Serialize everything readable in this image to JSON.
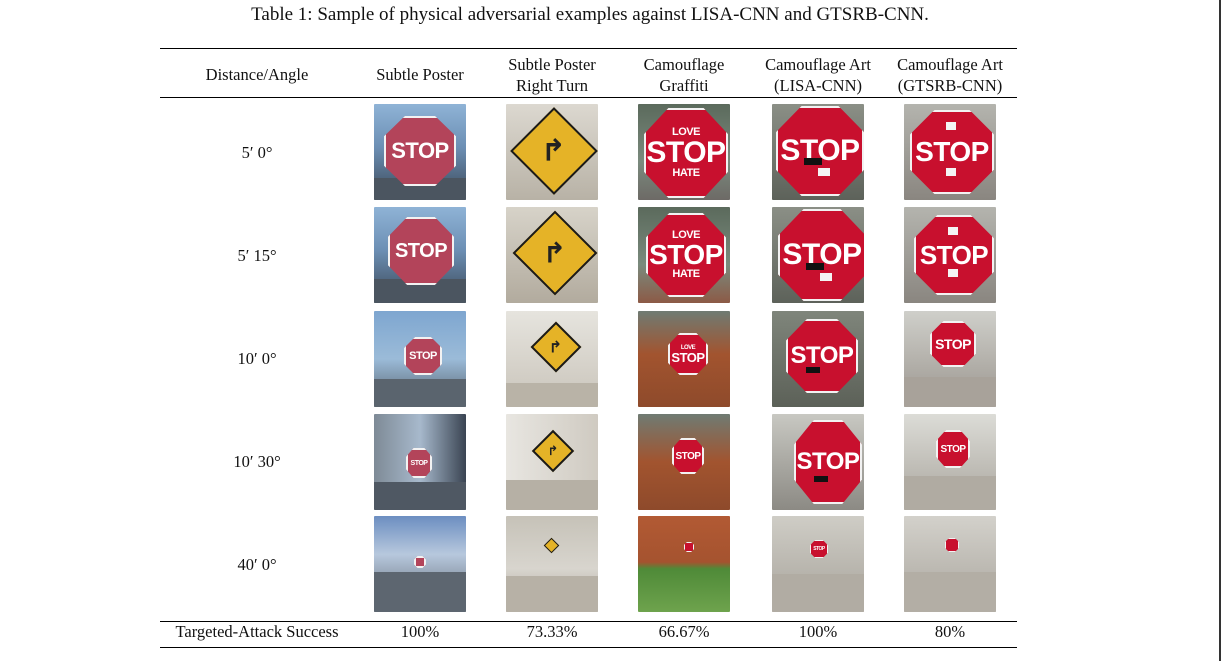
{
  "caption": "Table 1: Sample of physical adversarial examples against LISA-CNN and GTSRB-CNN.",
  "columns": [
    {
      "line1": "Distance/Angle",
      "line2": ""
    },
    {
      "line1": "Subtle Poster",
      "line2": ""
    },
    {
      "line1": "Subtle Poster",
      "line2": "Right Turn"
    },
    {
      "line1": "Camouflage",
      "line2": "Graffiti"
    },
    {
      "line1": "Camouflage Art",
      "line2": "(LISA-CNN)"
    },
    {
      "line1": "Camouflage Art",
      "line2": "(GTSRB-CNN)"
    }
  ],
  "rows": [
    {
      "label": "5′ 0°"
    },
    {
      "label": "5′ 15°"
    },
    {
      "label": "10′ 0°"
    },
    {
      "label": "10′ 30°"
    },
    {
      "label": "40′ 0°"
    }
  ],
  "sign_text": {
    "stop": "STOP",
    "graffiti_top": "LOVE",
    "graffiti_bottom": "HATE",
    "arrow": "↱"
  },
  "footer": {
    "label": "Targeted-Attack Success",
    "values": [
      "100%",
      "73.33%",
      "66.67%",
      "100%",
      "80%"
    ]
  }
}
